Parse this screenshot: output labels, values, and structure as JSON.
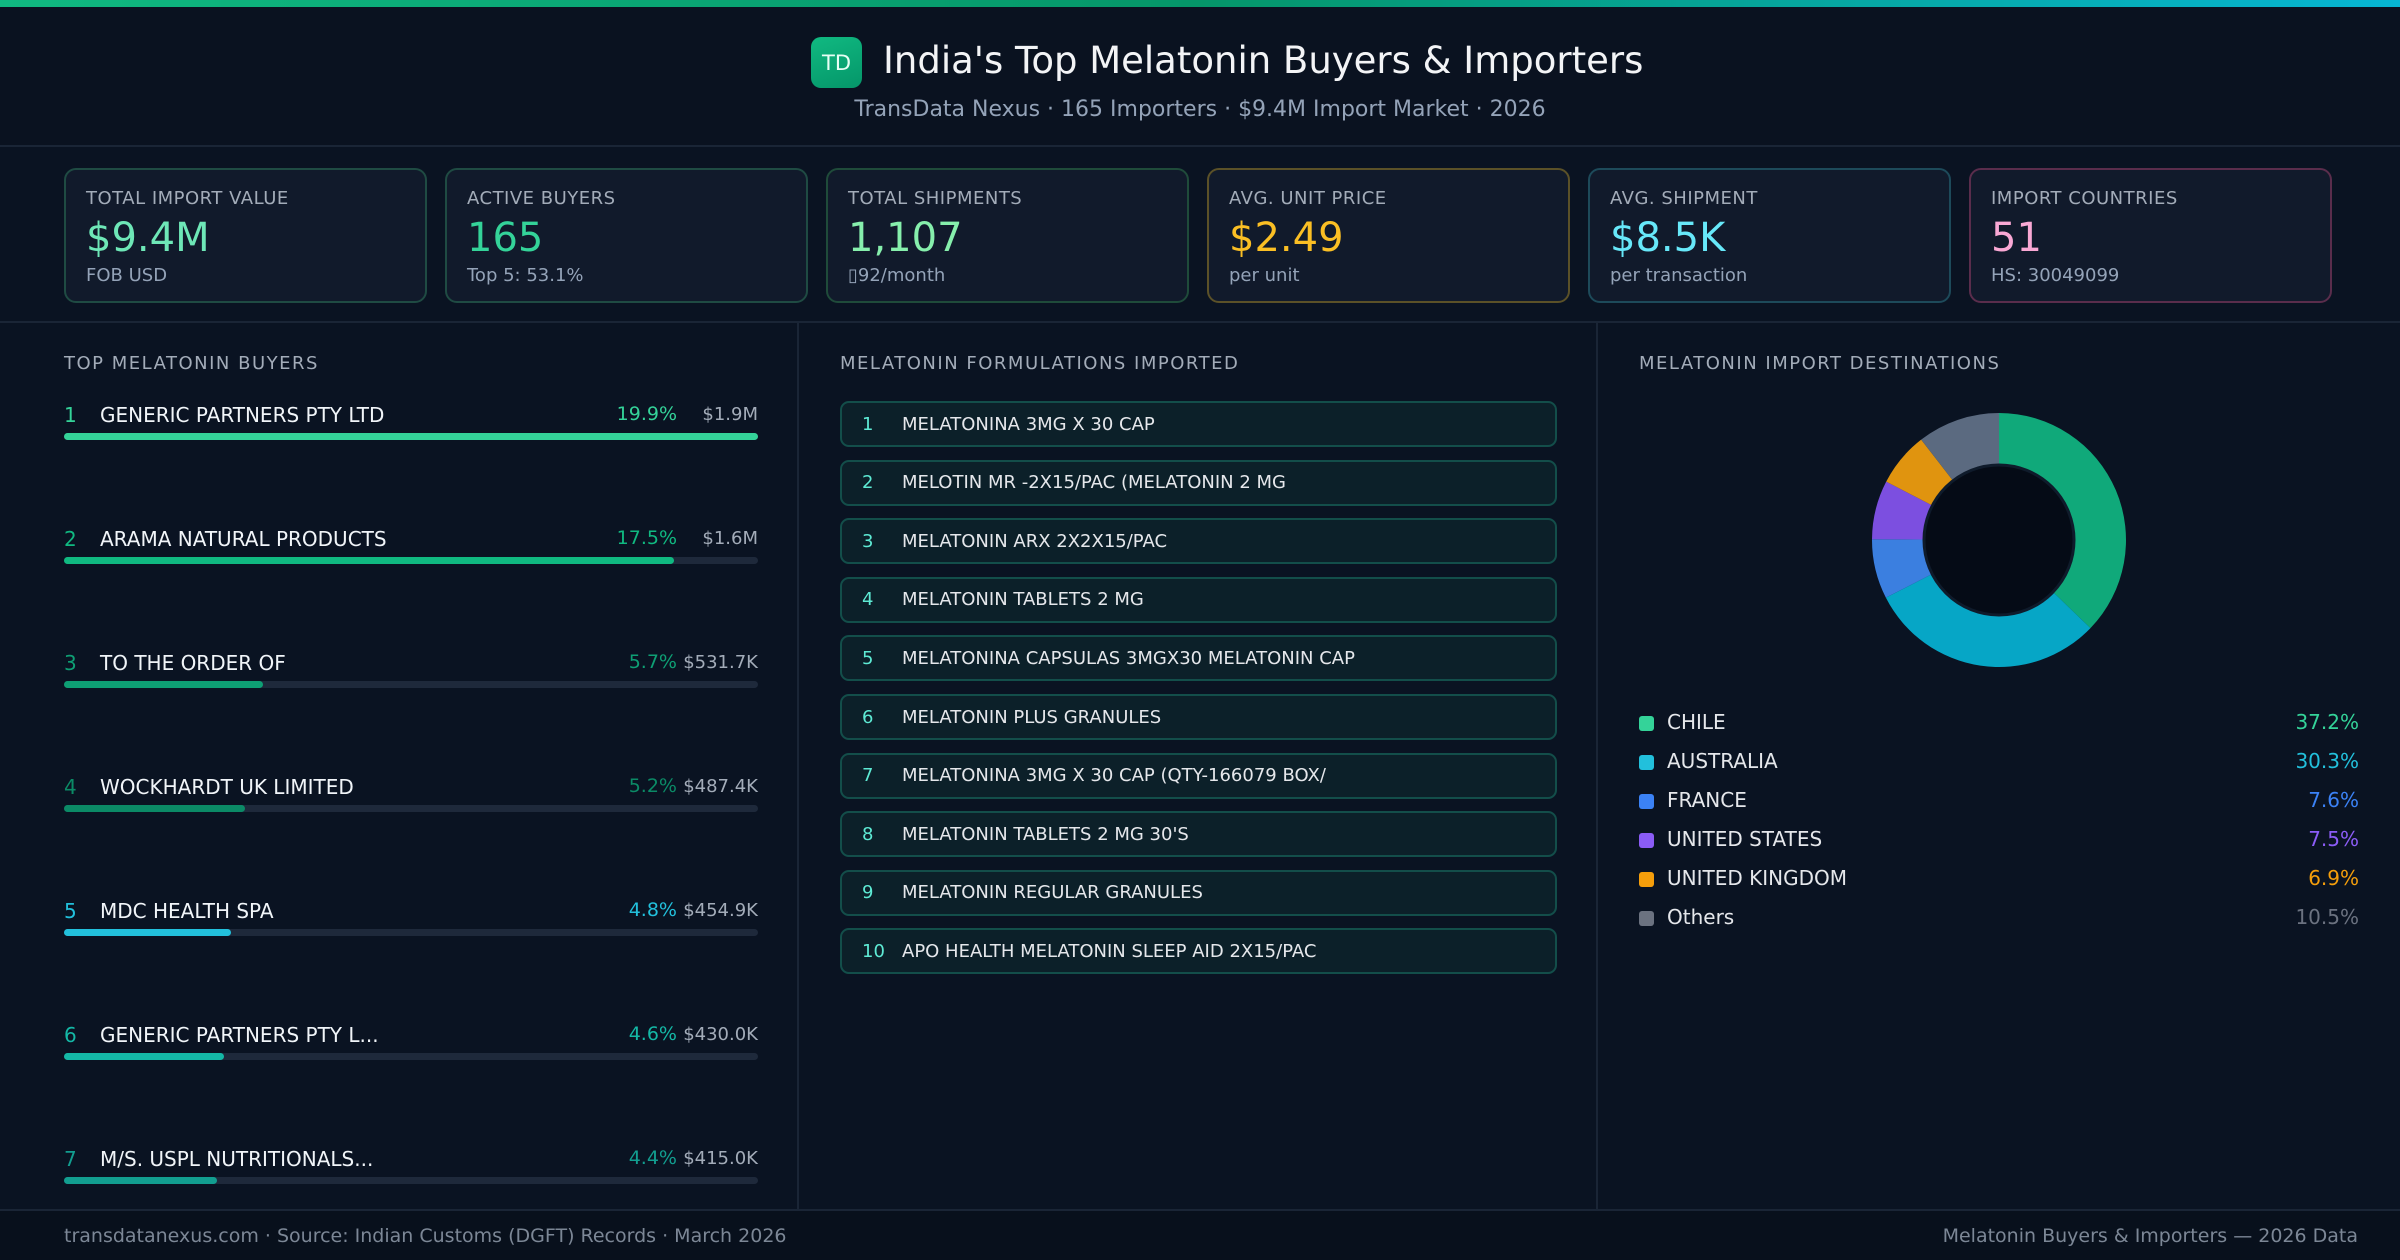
{
  "header": {
    "logo": "TD",
    "title": "India's Top Melatonin Buyers & Importers",
    "subtitle": "TransData Nexus · 165 Importers · $9.4M Import Market · 2026"
  },
  "kpis": [
    {
      "label": "TOTAL IMPORT VALUE",
      "value": "$9.4M",
      "sub": "FOB USD",
      "color": "#6ee7b7",
      "border": "#1f4b43"
    },
    {
      "label": "ACTIVE BUYERS",
      "value": "165",
      "sub": "Top 5: 53.1%",
      "color": "#34d399",
      "border": "#1f4b43"
    },
    {
      "label": "TOTAL SHIPMENTS",
      "value": "1,107",
      "sub": "▯92/month",
      "color": "#86efac",
      "border": "#1f4b3a"
    },
    {
      "label": "AVG. UNIT PRICE",
      "value": "$2.49",
      "sub": "per unit",
      "color": "#fbbf24",
      "border": "#5b5128"
    },
    {
      "label": "AVG. SHIPMENT",
      "value": "$8.5K",
      "sub": "per transaction",
      "color": "#67e8f9",
      "border": "#1d4a5a"
    },
    {
      "label": "IMPORT COUNTRIES",
      "value": "51",
      "sub": "HS: 30049099",
      "color": "#f9a8d4",
      "border": "#5a2d4c"
    }
  ],
  "buyers": {
    "title": "TOP MELATONIN BUYERS",
    "items": [
      {
        "rank": "1",
        "name": "GENERIC PARTNERS PTY LTD",
        "pct": "19.9%",
        "value": "$1.9M",
        "share": 19.9,
        "color": "#34d399"
      },
      {
        "rank": "2",
        "name": "ARAMA NATURAL PRODUCTS",
        "pct": "17.5%",
        "value": "$1.6M",
        "share": 17.5,
        "color": "#10b981"
      },
      {
        "rank": "3",
        "name": "TO THE ORDER OF",
        "pct": "5.7%",
        "value": "$531.7K",
        "share": 5.7,
        "color": "#0e9f74"
      },
      {
        "rank": "4",
        "name": "WOCKHARDT UK LIMITED",
        "pct": "5.2%",
        "value": "$487.4K",
        "share": 5.2,
        "color": "#0b8a66"
      },
      {
        "rank": "5",
        "name": "MDC HEALTH SPA",
        "pct": "4.8%",
        "value": "$454.9K",
        "share": 4.8,
        "color": "#22c0dc"
      },
      {
        "rank": "6",
        "name": "GENERIC PARTNERS PTY L...",
        "pct": "4.6%",
        "value": "$430.0K",
        "share": 4.6,
        "color": "#14b8a6"
      },
      {
        "rank": "7",
        "name": "M/S. USPL NUTRITIONALS...",
        "pct": "4.4%",
        "value": "$415.0K",
        "share": 4.4,
        "color": "#129e90"
      }
    ]
  },
  "formulations": {
    "title": "MELATONIN FORMULATIONS IMPORTED",
    "items": [
      {
        "rank": "1",
        "name": "MELATONINA 3MG X 30 CAP"
      },
      {
        "rank": "2",
        "name": "MELOTIN MR -2X15/PAC (MELATONIN 2 MG"
      },
      {
        "rank": "3",
        "name": "MELATONIN ARX 2X2X15/PAC"
      },
      {
        "rank": "4",
        "name": "MELATONIN TABLETS 2 MG"
      },
      {
        "rank": "5",
        "name": "MELATONINA CAPSULAS 3MGX30 MELATONIN CAP"
      },
      {
        "rank": "6",
        "name": "MELATONIN PLUS GRANULES"
      },
      {
        "rank": "7",
        "name": "MELATONINA 3MG X 30 CAP (QTY-166079 BOX/"
      },
      {
        "rank": "8",
        "name": "MELATONIN TABLETS 2 MG 30'S"
      },
      {
        "rank": "9",
        "name": "MELATONIN REGULAR GRANULES"
      },
      {
        "rank": "10",
        "name": "APO HEALTH MELATONIN SLEEP AID 2X15/PAC"
      }
    ]
  },
  "destinations": {
    "title": "MELATONIN IMPORT DESTINATIONS"
  },
  "chart_data": {
    "type": "pie",
    "variant": "donut",
    "legend": "bottom",
    "categories": [
      "CHILE",
      "AUSTRALIA",
      "FRANCE",
      "UNITED STATES",
      "UNITED KINGDOM",
      "Others"
    ],
    "labels": [
      "37.2%",
      "30.3%",
      "7.6%",
      "7.5%",
      "6.9%",
      "10.5%"
    ],
    "values": [
      37.2,
      30.3,
      7.6,
      7.5,
      6.9,
      10.5
    ],
    "colors": [
      "#10a97a",
      "#06a6c6",
      "#3b7fe0",
      "#7c4fe0",
      "#e0940f",
      "#5b6a80"
    ],
    "text_colors": [
      "#34d399",
      "#22c0dc",
      "#3b82f6",
      "#8b5cf6",
      "#f59e0b",
      "#6b7280"
    ]
  },
  "footer": {
    "left": "transdatanexus.com · Source: Indian Customs (DGFT) Records · March 2026",
    "right": "Melatonin Buyers & Importers — 2026 Data"
  }
}
